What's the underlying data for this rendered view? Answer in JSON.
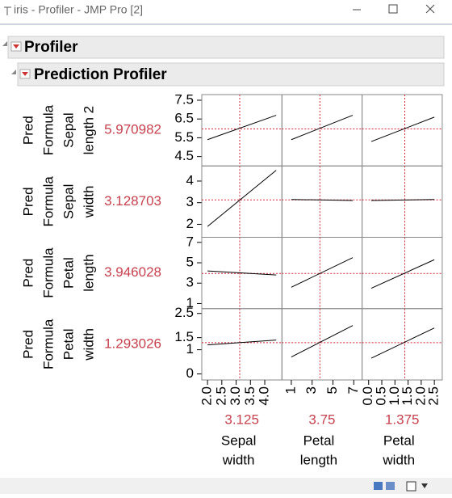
{
  "window": {
    "title": "iris - Profiler - JMP Pro [2]"
  },
  "outline": {
    "title": "Profiler"
  },
  "profiler": {
    "title": "Prediction Profiler",
    "factors": [
      {
        "label": [
          "Sepal",
          "width"
        ],
        "value": 3.125,
        "xlim": [
          1.8,
          4.6
        ],
        "xticks": [
          {
            "value": 2,
            "label": "2.0"
          },
          {
            "value": 2.5,
            "label": "2.5"
          },
          {
            "value": 3,
            "label": "3.0"
          },
          {
            "value": 3.5,
            "label": "3.5"
          },
          {
            "value": 4,
            "label": "4.0"
          }
        ]
      },
      {
        "label": [
          "Petal",
          "length"
        ],
        "value": 3.75,
        "xlim": [
          0.1,
          7.8
        ],
        "xticks": [
          1,
          3,
          5,
          7
        ]
      },
      {
        "label": [
          "Petal",
          "width"
        ],
        "value": 1.375,
        "xlim": [
          -0.25,
          2.8
        ],
        "xticks": [
          {
            "value": 0,
            "label": "0.0"
          },
          0.5,
          {
            "value": 1,
            "label": "1.0"
          },
          1.5,
          {
            "value": 2,
            "label": "2.0"
          },
          2.5
        ]
      }
    ],
    "responses": [
      {
        "label": [
          "Pred",
          "Formula",
          "Sepal",
          "length 2"
        ],
        "value": 5.970982,
        "ylim": [
          4.0,
          7.8
        ],
        "yticks": [
          4.5,
          5.5,
          6.5,
          7.5
        ],
        "lines": [
          {
            "x": [
              2.0,
              4.4
            ],
            "y": [
              5.4,
              6.7
            ]
          },
          {
            "x": [
              1,
              6.9
            ],
            "y": [
              5.4,
              6.7
            ]
          },
          {
            "x": [
              0.1,
              2.5
            ],
            "y": [
              5.3,
              6.6
            ]
          }
        ]
      },
      {
        "label": [
          "Pred",
          "Formula",
          "Sepal",
          "width"
        ],
        "value": 3.128703,
        "ylim": [
          1.4,
          4.7
        ],
        "yticks": [
          2,
          3,
          4
        ],
        "lines": [
          {
            "x": [
              2.0,
              4.4
            ],
            "y": [
              1.9,
              4.5
            ]
          },
          {
            "x": [
              1,
              6.9
            ],
            "y": [
              3.15,
              3.1
            ]
          },
          {
            "x": [
              0.1,
              2.5
            ],
            "y": [
              3.1,
              3.15
            ]
          }
        ]
      },
      {
        "label": [
          "Pred",
          "Formula",
          "Petal",
          "length"
        ],
        "value": 3.946028,
        "ylim": [
          0.5,
          7.5
        ],
        "yticks": [
          1,
          3,
          5,
          7
        ],
        "lines": [
          {
            "x": [
              2.0,
              4.4
            ],
            "y": [
              4.2,
              3.8
            ]
          },
          {
            "x": [
              1,
              6.9
            ],
            "y": [
              2.6,
              5.5
            ]
          },
          {
            "x": [
              0.1,
              2.5
            ],
            "y": [
              2.5,
              5.3
            ]
          }
        ]
      },
      {
        "label": [
          "Pred",
          "Formula",
          "Petal",
          "width"
        ],
        "value": 1.293026,
        "ylim": [
          -0.25,
          2.7
        ],
        "yticks": [
          0,
          1,
          1.5,
          2.5
        ],
        "lines": [
          {
            "x": [
              2.0,
              4.4
            ],
            "y": [
              1.2,
              1.4
            ]
          },
          {
            "x": [
              1,
              6.9
            ],
            "y": [
              0.7,
              2.0
            ]
          },
          {
            "x": [
              0.1,
              2.5
            ],
            "y": [
              0.65,
              1.9
            ]
          }
        ]
      }
    ]
  }
}
